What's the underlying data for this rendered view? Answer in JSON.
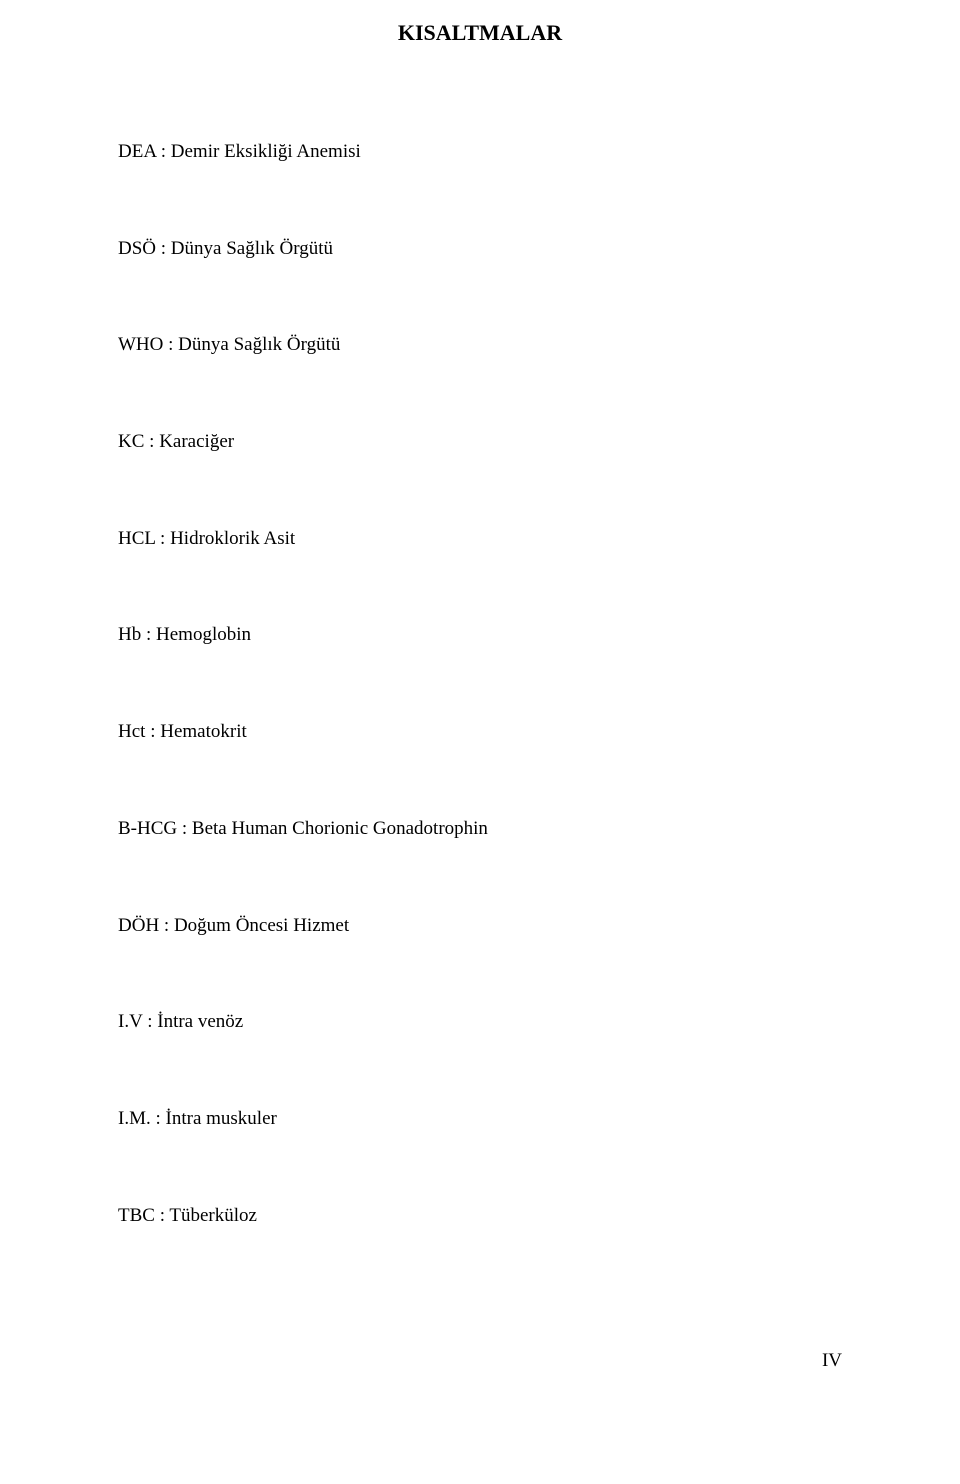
{
  "title": "KISALTMALAR",
  "abbreviations": [
    {
      "abbr": "DEA",
      "sep": " : ",
      "def": "Demir Eksikliği Anemisi"
    },
    {
      "abbr": "DSÖ",
      "sep": " : ",
      "def": "Dünya Sağlık Örgütü"
    },
    {
      "abbr": "WHO",
      "sep": " : ",
      "def": "Dünya Sağlık Örgütü"
    },
    {
      "abbr": "KC",
      "sep": " : ",
      "def": "Karaciğer"
    },
    {
      "abbr": "HCL",
      "sep": " : ",
      "def": "Hidroklorik Asit"
    },
    {
      "abbr": "Hb",
      "sep": "   : ",
      "def": "Hemoglobin"
    },
    {
      "abbr": "Hct",
      "sep": "  : ",
      "def": "Hematokrit"
    },
    {
      "abbr": "B-HCG",
      "sep": " : ",
      "def": "Beta Human Chorionic Gonadotrophin"
    },
    {
      "abbr": "DÖH",
      "sep": " : ",
      "def": "Doğum Öncesi Hizmet"
    },
    {
      "abbr": "I.V",
      "sep": "     : ",
      "def": "İntra venöz"
    },
    {
      "abbr": "I.M.",
      "sep": "   : ",
      "def": "İntra muskuler"
    },
    {
      "abbr": "TBC",
      "sep": " :  ",
      "def": "Tüberküloz"
    }
  ],
  "pageNumber": "IV",
  "style": {
    "background_color": "#ffffff",
    "text_color": "#000000",
    "title_fontsize": 22,
    "body_fontsize": 19,
    "font_family": "Times New Roman"
  }
}
